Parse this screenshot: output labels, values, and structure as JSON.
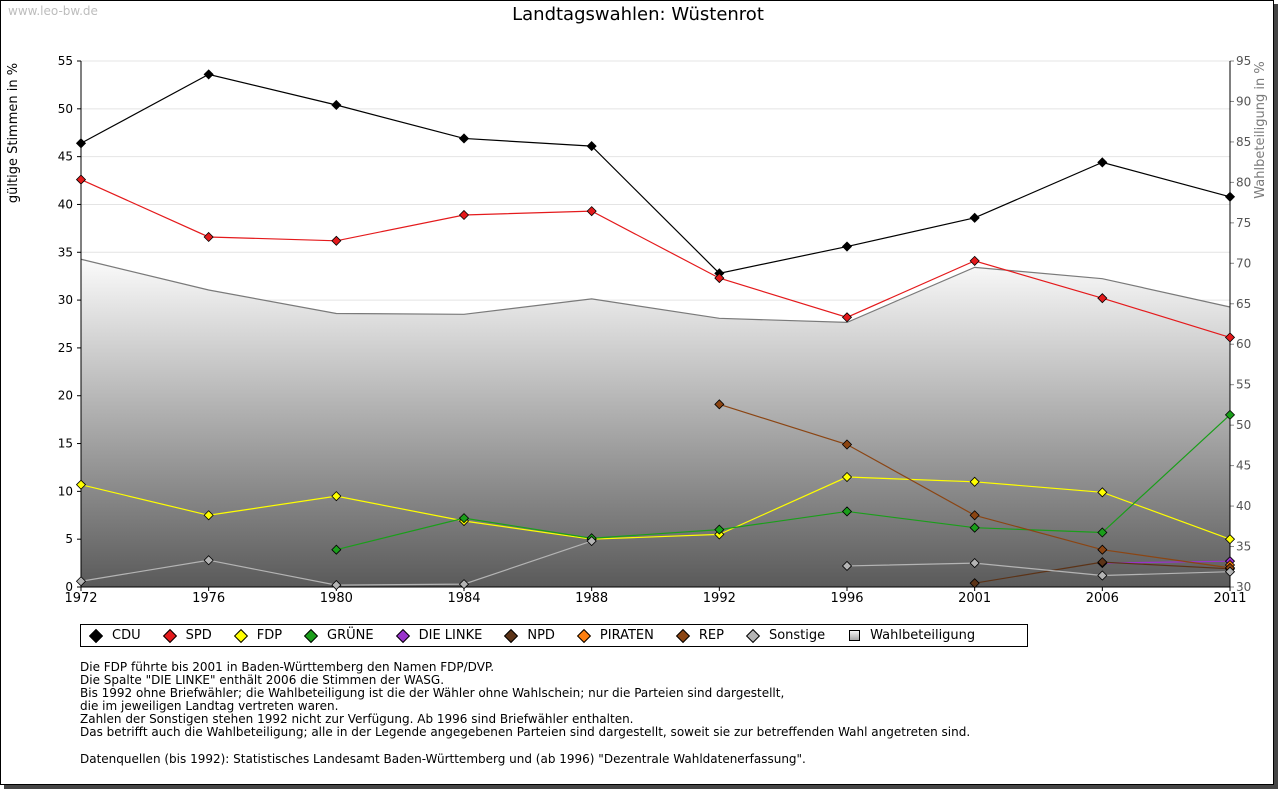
{
  "header": {
    "watermark": "www.leo-bw.de"
  },
  "chart_data": {
    "type": "line",
    "title": "Landtagswahlen: Wüstenrot",
    "ylabel": "gültige Stimmen in %",
    "y2label": "Wahlbeteiligung in %",
    "ylim": [
      0,
      55
    ],
    "y2lim": [
      30,
      95
    ],
    "yticks": [
      "0",
      "5",
      "10",
      "15",
      "20",
      "25",
      "30",
      "35",
      "40",
      "45",
      "50",
      "55"
    ],
    "y2ticks": [
      "30",
      "35",
      "40",
      "45",
      "50",
      "55",
      "60",
      "65",
      "70",
      "75",
      "80",
      "85",
      "90",
      "95"
    ],
    "categories": [
      "1972",
      "1976",
      "1980",
      "1984",
      "1988",
      "1992",
      "1996",
      "2001",
      "2006",
      "2011"
    ],
    "series": [
      {
        "name": "CDU",
        "color": "#000000",
        "values": [
          46.4,
          53.6,
          50.4,
          46.9,
          46.1,
          32.8,
          35.6,
          38.6,
          44.4,
          40.8
        ]
      },
      {
        "name": "SPD",
        "color": "#e41a1c",
        "values": [
          42.6,
          36.6,
          36.2,
          38.9,
          39.3,
          32.3,
          28.2,
          34.1,
          30.2,
          26.1
        ]
      },
      {
        "name": "FDP",
        "color": "#ffff00",
        "values": [
          10.7,
          7.5,
          9.5,
          6.9,
          5.0,
          5.5,
          11.5,
          11.0,
          9.9,
          5.0
        ]
      },
      {
        "name": "GRÜNE",
        "color": "#1a9e1a",
        "values": [
          null,
          null,
          3.9,
          7.2,
          5.1,
          6.0,
          7.9,
          6.2,
          5.7,
          18.0
        ]
      },
      {
        "name": "DIE LINKE",
        "color": "#9932cc",
        "values": [
          null,
          null,
          null,
          null,
          null,
          null,
          null,
          null,
          2.5,
          2.7
        ]
      },
      {
        "name": "NPD",
        "color": "#5c3317",
        "values": [
          null,
          null,
          null,
          null,
          null,
          null,
          null,
          0.4,
          2.6,
          1.9
        ]
      },
      {
        "name": "PIRATEN",
        "color": "#ff7f0e",
        "values": [
          null,
          null,
          null,
          null,
          null,
          null,
          null,
          null,
          null,
          2.3
        ]
      },
      {
        "name": "REP",
        "color": "#8b4513",
        "values": [
          null,
          null,
          null,
          null,
          null,
          19.1,
          14.9,
          7.5,
          3.9,
          2.0
        ]
      },
      {
        "name": "Sonstige",
        "color": "#b4b4b4",
        "values": [
          0.6,
          2.8,
          0.2,
          0.3,
          4.8,
          null,
          2.2,
          2.5,
          1.2,
          1.6
        ]
      }
    ],
    "turnout": {
      "name": "Wahlbeteiligung",
      "values": [
        70.5,
        66.7,
        63.8,
        63.7,
        65.6,
        63.2,
        62.7,
        69.5,
        68.1,
        64.6
      ]
    }
  },
  "notes": [
    "Die FDP führte bis 2001 in Baden-Württemberg den Namen FDP/DVP.",
    "Die Spalte \"DIE LINKE\" enthält 2006 die Stimmen der WASG.",
    "Bis 1992 ohne Briefwähler; die Wahlbeteiligung ist die der Wähler ohne Wahlschein; nur die Parteien sind dargestellt,",
    "die im jeweiligen Landtag vertreten waren.",
    "Zahlen der Sonstigen stehen 1992 nicht zur Verfügung. Ab 1996 sind Briefwähler enthalten.",
    "Das betrifft auch die Wahlbeteiligung; alle in der Legende angegebenen Parteien sind dargestellt, soweit sie zur betreffenden Wahl angetreten sind."
  ],
  "source": "Datenquellen (bis 1992): Statistisches Landesamt Baden-Württemberg und (ab 1996) \"Dezentrale Wahldatenerfassung\"."
}
